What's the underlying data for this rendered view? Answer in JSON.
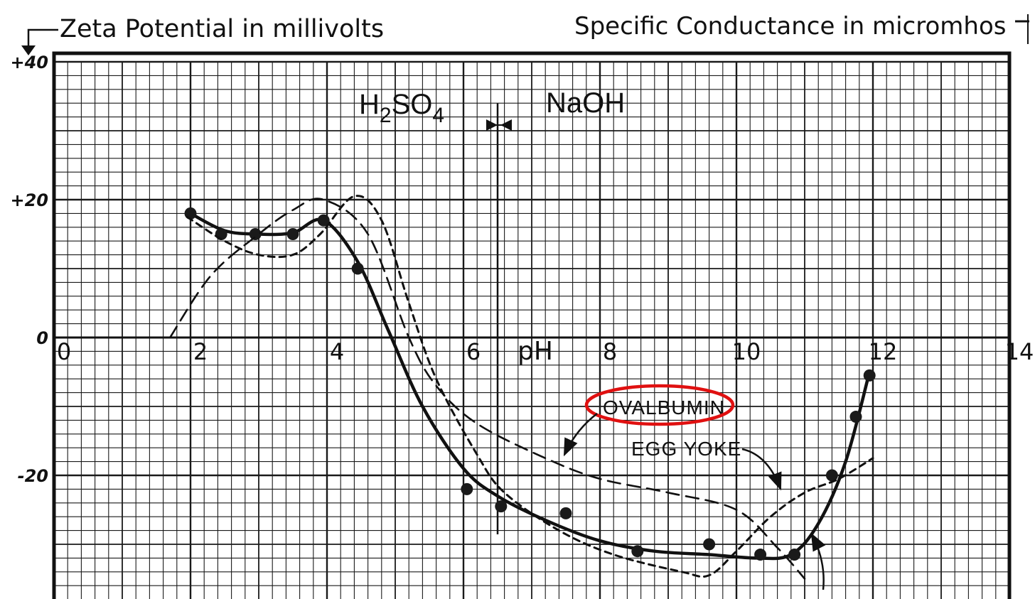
{
  "headers": {
    "left": "Zeta Potential in millivolts",
    "right": "Specific Conductance in micromhos"
  },
  "chart_data": {
    "type": "line",
    "xlim": [
      0,
      14
    ],
    "ylim": [
      -37,
      40
    ],
    "x_ticks": [
      "0",
      "2",
      "4",
      "6",
      "8",
      "10",
      "12",
      "14"
    ],
    "x_tick_values": [
      0,
      2,
      4,
      6,
      8,
      10,
      12,
      14
    ],
    "y_ticks": [
      "+40",
      "+20",
      "0",
      "-20"
    ],
    "y_tick_values": [
      40,
      20,
      0,
      -20
    ],
    "x_axis_label": "pH",
    "grid": true,
    "annotations": {
      "acid": "H2SO4",
      "acid_parts": [
        "H",
        "2",
        "SO",
        "4"
      ],
      "base": "NaOH",
      "divider_x": 6.5
    },
    "labels": [
      "OVALBUMIN",
      "EGG YOKE"
    ],
    "series": [
      {
        "style": "solid",
        "points": [
          [
            2.0,
            18
          ],
          [
            2.45,
            15
          ],
          [
            2.95,
            15
          ],
          [
            3.5,
            15
          ],
          [
            3.95,
            17
          ],
          [
            4.45,
            10
          ],
          [
            6.05,
            -22
          ],
          [
            6.55,
            -24.5
          ],
          [
            7.5,
            -25.5
          ],
          [
            8.55,
            -31
          ],
          [
            9.6,
            -30
          ],
          [
            10.35,
            -31.5
          ],
          [
            10.85,
            -31.5
          ],
          [
            11.4,
            -20
          ],
          [
            11.75,
            -11.5
          ],
          [
            11.95,
            -5.5
          ]
        ],
        "curve": [
          [
            2.0,
            18
          ],
          [
            2.5,
            15.5
          ],
          [
            3.0,
            15
          ],
          [
            3.5,
            15.2
          ],
          [
            3.95,
            17
          ],
          [
            4.45,
            11
          ],
          [
            4.9,
            1
          ],
          [
            5.4,
            -10
          ],
          [
            6.0,
            -19
          ],
          [
            6.5,
            -23
          ],
          [
            7.2,
            -26.5
          ],
          [
            8.0,
            -29.5
          ],
          [
            8.8,
            -31
          ],
          [
            9.6,
            -31.5
          ],
          [
            10.3,
            -32
          ],
          [
            10.8,
            -31.5
          ],
          [
            11.2,
            -27
          ],
          [
            11.6,
            -18
          ],
          [
            11.95,
            -5
          ]
        ]
      },
      {
        "style": "short-dash",
        "curve": [
          [
            1.95,
            17.5
          ],
          [
            2.5,
            14
          ],
          [
            3.0,
            12
          ],
          [
            3.5,
            12
          ],
          [
            3.9,
            15
          ],
          [
            4.4,
            20.5
          ],
          [
            4.8,
            17
          ],
          [
            5.2,
            5
          ],
          [
            5.6,
            -6
          ],
          [
            6.2,
            -17
          ],
          [
            6.6,
            -22.5
          ],
          [
            7.4,
            -28
          ],
          [
            8.2,
            -31.5
          ],
          [
            9.2,
            -34
          ],
          [
            9.6,
            -34.5
          ],
          [
            10.0,
            -31
          ],
          [
            10.5,
            -26
          ],
          [
            11.0,
            -22.5
          ],
          [
            11.5,
            -20.5
          ],
          [
            12.0,
            -17.5
          ]
        ]
      },
      {
        "style": "long-dash",
        "curve": [
          [
            1.7,
            0
          ],
          [
            2.3,
            9
          ],
          [
            3.0,
            15
          ],
          [
            3.5,
            18.5
          ],
          [
            3.95,
            20
          ],
          [
            4.6,
            15
          ],
          [
            5.2,
            0
          ],
          [
            5.6,
            -7
          ],
          [
            6.2,
            -12.5
          ],
          [
            7.2,
            -17.5
          ],
          [
            8.0,
            -20.5
          ],
          [
            9.0,
            -22.5
          ],
          [
            10.0,
            -25
          ],
          [
            10.6,
            -30.5
          ],
          [
            11.0,
            -35
          ]
        ]
      }
    ]
  }
}
